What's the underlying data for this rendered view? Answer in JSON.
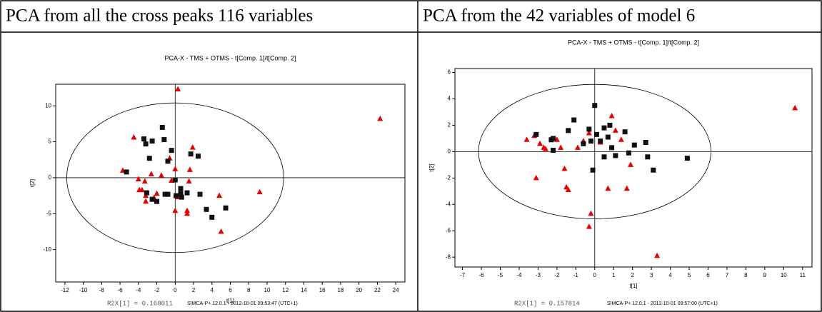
{
  "table": {
    "header": [
      "PCA from all the cross peaks  116 variables",
      "PCA from the 42 variables of model 6"
    ]
  },
  "chart_data": [
    {
      "type": "scatter",
      "title": "PCA-X -  TMS + OTMS  -   t[Comp. 1]/t[Comp. 2]",
      "xlabel": "t[1]",
      "ylabel": "t[2]",
      "xlim": [
        -13,
        25
      ],
      "ylim": [
        -14.5,
        13
      ],
      "xticks": [
        -12,
        -10,
        -8,
        -6,
        -4,
        -2,
        0,
        2,
        4,
        6,
        8,
        10,
        12,
        14,
        16,
        18,
        20,
        22,
        24
      ],
      "yticks": [
        -10,
        -5,
        0,
        5,
        10
      ],
      "grid": false,
      "ellipse": {
        "rx": 11.8,
        "ry": 10.4
      },
      "annotations": [
        "R2X[1] = 0.168011",
        "SIMCA-P+ 12.0.1 - 2012-10-01 09:53:47 (UTC+1)"
      ],
      "series": [
        {
          "color": "#e60000",
          "marker": "triangle",
          "x": [
            0.3,
            22.3,
            -4.5,
            -5.7,
            -4,
            -3.3,
            -3.9,
            -3.6,
            -3.2,
            -3.2,
            -2.6,
            -2,
            -2.3,
            -1.5,
            -0.6,
            -0.4,
            0,
            0,
            0.3,
            1.3,
            1.3,
            1.5,
            1.6,
            1.9,
            4.8,
            5,
            9.2
          ],
          "y": [
            12.3,
            8.2,
            5.6,
            1,
            -0.2,
            -0.5,
            -1.7,
            -1.7,
            -2.5,
            -3.3,
            0.5,
            -2.2,
            -2.8,
            0.3,
            2.7,
            -0.4,
            1.2,
            -4.6,
            -2.7,
            -4.6,
            -5,
            -0.5,
            1.1,
            4.2,
            -2.5,
            -7.5,
            -2
          ]
        },
        {
          "color": "#111111",
          "marker": "square",
          "x": [
            -5.3,
            -3.4,
            -3.2,
            -2.8,
            -2.5,
            -1.4,
            -1.2,
            -0.8,
            -0.4,
            -1.1,
            -0.8,
            -2,
            -2.5,
            -3.1,
            0,
            0.6,
            0.6,
            0.7,
            1.3,
            1.7,
            2.5,
            2.7,
            3.4,
            4,
            5.5,
            0.1
          ],
          "y": [
            0.8,
            5.4,
            4.7,
            2.7,
            5.1,
            7,
            5.3,
            2.3,
            3.8,
            -2.3,
            -2.3,
            -3.3,
            -3,
            -2.1,
            -0.3,
            -1.5,
            -2.2,
            -2.7,
            -2.1,
            3.3,
            3,
            -2.3,
            -4.4,
            -5.5,
            -4.2,
            -2.5
          ]
        }
      ]
    },
    {
      "type": "scatter",
      "title": "PCA-X - TMS + OTMS  - t[Comp. 1]/t[Comp. 2]",
      "xlabel": "t[1]",
      "ylabel": "t[2]",
      "xlim": [
        -7.4,
        11.5
      ],
      "ylim": [
        -8.75,
        6.3
      ],
      "xticks": [
        -7,
        -6,
        -5,
        -4,
        -3,
        -2,
        -1,
        0,
        1,
        2,
        3,
        4,
        5,
        6,
        7,
        8,
        9,
        10,
        11
      ],
      "yticks": [
        -8,
        -6,
        -4,
        -2,
        0,
        2,
        4,
        6
      ],
      "grid": false,
      "ellipse": {
        "rx": 6.15,
        "ry": 5.1
      },
      "annotations": [
        "R2X[1] = 0.157814",
        "SIMCA-P+ 12.0.1 - 2012-10-01 09:57:00 (UTC+1)"
      ],
      "series": [
        {
          "color": "#e60000",
          "marker": "triangle",
          "x": [
            10.6,
            -3.6,
            -3.2,
            -2.9,
            -2.6,
            -2.7,
            -3.1,
            -2,
            -1.8,
            -1.6,
            -1.5,
            -1.4,
            -0.9,
            -0.6,
            -0.2,
            -0.3,
            0.3,
            0.7,
            0.9,
            1.1,
            1.4,
            1.9,
            1.7,
            3.3,
            -0.3
          ],
          "y": [
            3.3,
            0.9,
            1.2,
            0.6,
            0.2,
            0.3,
            -2,
            0.9,
            0.3,
            -1.3,
            -2.7,
            -2.9,
            0.3,
            0.8,
            -4.7,
            -5.7,
            0.7,
            -2.8,
            2.7,
            1.6,
            0.9,
            -1,
            -2.8,
            -7.9,
            1.4
          ]
        },
        {
          "color": "#111111",
          "marker": "square",
          "x": [
            -3.1,
            -2.2,
            -2.3,
            -2.2,
            -1.1,
            -1.4,
            -0.6,
            -0.3,
            -0.1,
            0,
            0.1,
            0.3,
            0.5,
            0.5,
            0.9,
            0.8,
            1.1,
            1.6,
            2.1,
            1.8,
            2.7,
            2.8,
            3.1,
            4.9,
            0.7,
            -0.2
          ],
          "y": [
            1.3,
            1,
            0.9,
            0.1,
            2.4,
            1.6,
            0.6,
            1.7,
            -1.4,
            3.5,
            1.3,
            0.8,
            -0.4,
            1.8,
            0.3,
            2,
            -0.3,
            1.5,
            0.5,
            -0.1,
            0.7,
            -0.4,
            -1.4,
            -0.5,
            1.1,
            0.8
          ]
        }
      ]
    }
  ]
}
